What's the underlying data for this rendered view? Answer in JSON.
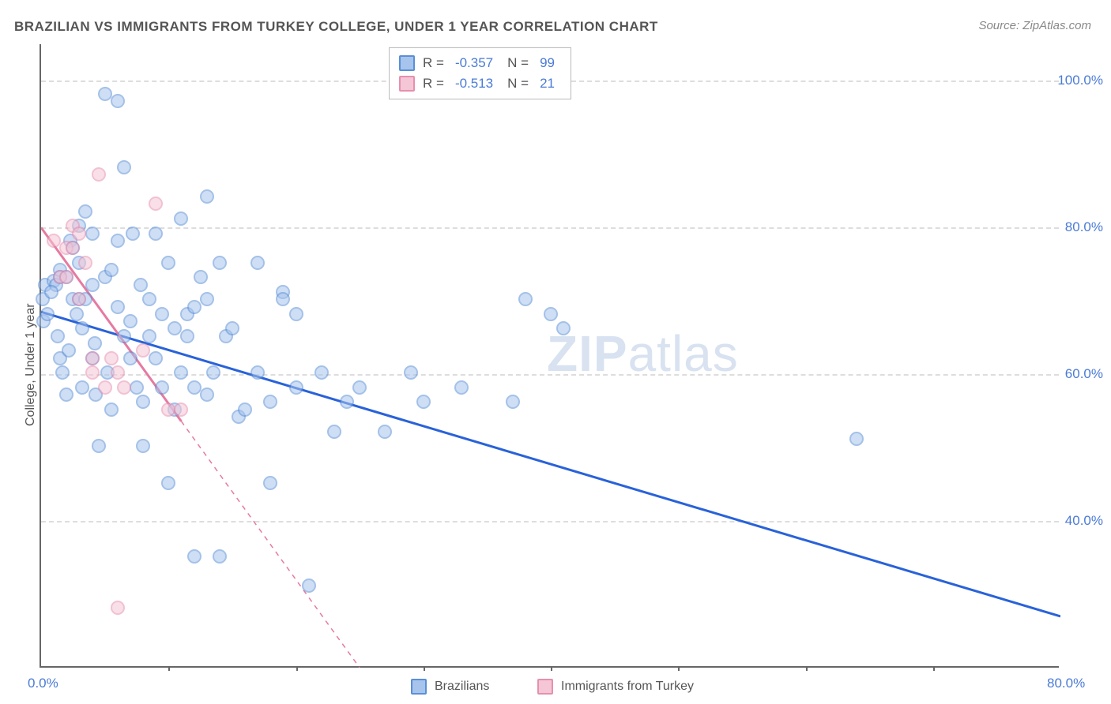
{
  "title": "BRAZILIAN VS IMMIGRANTS FROM TURKEY COLLEGE, UNDER 1 YEAR CORRELATION CHART",
  "source": "Source: ZipAtlas.com",
  "ylabel": "College, Under 1 year",
  "watermark_zip": "ZIP",
  "watermark_atlas": "atlas",
  "chart": {
    "type": "scatter",
    "xlim": [
      0,
      80
    ],
    "ylim": [
      20,
      105
    ],
    "yticks": [
      40,
      60,
      80,
      100
    ],
    "ytick_labels": [
      "40.0%",
      "60.0%",
      "80.0%",
      "100.0%"
    ],
    "xticks": [
      0,
      80
    ],
    "xtick_labels": [
      "0.0%",
      "80.0%"
    ],
    "xtick_minor": [
      10,
      20,
      30,
      40,
      50,
      60,
      70
    ],
    "grid_color": "#dddddd",
    "axis_color": "#666666",
    "background_color": "#ffffff",
    "marker_radius": 9,
    "marker_opacity": 0.55
  },
  "series": [
    {
      "name": "Brazilians",
      "color_fill": "#a7c4ed",
      "color_stroke": "#5a8fd6",
      "R": "-0.357",
      "N": "99",
      "trend": {
        "x1": 0,
        "y1": 68.5,
        "x2": 80,
        "y2": 27,
        "stroke": "#2962d9",
        "width": 3,
        "dash": "none"
      },
      "points": [
        [
          0.2,
          67
        ],
        [
          0.1,
          70
        ],
        [
          0.3,
          72
        ],
        [
          0.5,
          68
        ],
        [
          1,
          72.5
        ],
        [
          1.2,
          72
        ],
        [
          1.3,
          65
        ],
        [
          0.8,
          71
        ],
        [
          1.5,
          62
        ],
        [
          1.7,
          60
        ],
        [
          1.5,
          74
        ],
        [
          1.5,
          73
        ],
        [
          2,
          73
        ],
        [
          2,
          57
        ],
        [
          2.2,
          63
        ],
        [
          2.3,
          78
        ],
        [
          2.5,
          70
        ],
        [
          2.5,
          77
        ],
        [
          3,
          75
        ],
        [
          3,
          70
        ],
        [
          3,
          80
        ],
        [
          3.2,
          66
        ],
        [
          3.2,
          58
        ],
        [
          3.5,
          82
        ],
        [
          3.5,
          70
        ],
        [
          4,
          79
        ],
        [
          4,
          72
        ],
        [
          4,
          62
        ],
        [
          4.2,
          64
        ],
        [
          4.5,
          50
        ],
        [
          5,
          73
        ],
        [
          5,
          98
        ],
        [
          5.2,
          60
        ],
        [
          5.5,
          74
        ],
        [
          5.5,
          55
        ],
        [
          6,
          97
        ],
        [
          6,
          69
        ],
        [
          6,
          78
        ],
        [
          6.5,
          65
        ],
        [
          6.5,
          88
        ],
        [
          7,
          67
        ],
        [
          7,
          62
        ],
        [
          7.2,
          79
        ],
        [
          7.5,
          58
        ],
        [
          8,
          56
        ],
        [
          8,
          50
        ],
        [
          8.5,
          70
        ],
        [
          8.5,
          65
        ],
        [
          9,
          79
        ],
        [
          9,
          62
        ],
        [
          9.5,
          58
        ],
        [
          9.5,
          68
        ],
        [
          10,
          75
        ],
        [
          10,
          45
        ],
        [
          10.5,
          55
        ],
        [
          10.5,
          66
        ],
        [
          11,
          81
        ],
        [
          11,
          60
        ],
        [
          11.5,
          65
        ],
        [
          11.5,
          68
        ],
        [
          12,
          35
        ],
        [
          12,
          69
        ],
        [
          12,
          58
        ],
        [
          12.5,
          73
        ],
        [
          13,
          70
        ],
        [
          13,
          57
        ],
        [
          13,
          84
        ],
        [
          13.5,
          60
        ],
        [
          14,
          75
        ],
        [
          14,
          35
        ],
        [
          14.5,
          65
        ],
        [
          15,
          66
        ],
        [
          15.5,
          54
        ],
        [
          16,
          55
        ],
        [
          17,
          60
        ],
        [
          17,
          75
        ],
        [
          18,
          45
        ],
        [
          18,
          56
        ],
        [
          19,
          71
        ],
        [
          19,
          70
        ],
        [
          20,
          68
        ],
        [
          20,
          58
        ],
        [
          21,
          31
        ],
        [
          22,
          60
        ],
        [
          23,
          52
        ],
        [
          24,
          56
        ],
        [
          25,
          58
        ],
        [
          27,
          52
        ],
        [
          29,
          60
        ],
        [
          30,
          56
        ],
        [
          33,
          58
        ],
        [
          37,
          56
        ],
        [
          38,
          70
        ],
        [
          40,
          68
        ],
        [
          41,
          66
        ],
        [
          64,
          51
        ],
        [
          2.8,
          68
        ],
        [
          4.3,
          57
        ],
        [
          7.8,
          72
        ]
      ]
    },
    {
      "name": "Immigrants from Turkey",
      "color_fill": "#f5c6d5",
      "color_stroke": "#e68fb0",
      "R": "-0.513",
      "N": "21",
      "trend": {
        "x1": 0,
        "y1": 80,
        "x2": 25,
        "y2": 20,
        "stroke": "#e67aa0",
        "width": 2,
        "dash": "6,6",
        "solid_until_x": 11
      },
      "points": [
        [
          1,
          78
        ],
        [
          1.5,
          73
        ],
        [
          2,
          73
        ],
        [
          2,
          77
        ],
        [
          2.5,
          80
        ],
        [
          2.5,
          77
        ],
        [
          3,
          70
        ],
        [
          3,
          79
        ],
        [
          3.5,
          75
        ],
        [
          4,
          62
        ],
        [
          4,
          60
        ],
        [
          4.5,
          87
        ],
        [
          5,
          58
        ],
        [
          5.5,
          62
        ],
        [
          6,
          60
        ],
        [
          6.5,
          58
        ],
        [
          8,
          63
        ],
        [
          9,
          83
        ],
        [
          10,
          55
        ],
        [
          11,
          55
        ],
        [
          6,
          28
        ]
      ]
    }
  ],
  "bottom_legend": [
    {
      "label": "Brazilians",
      "fill": "#a7c4ed",
      "stroke": "#5a8fd6"
    },
    {
      "label": "Immigrants from Turkey",
      "fill": "#f5c6d5",
      "stroke": "#e68fb0"
    }
  ]
}
